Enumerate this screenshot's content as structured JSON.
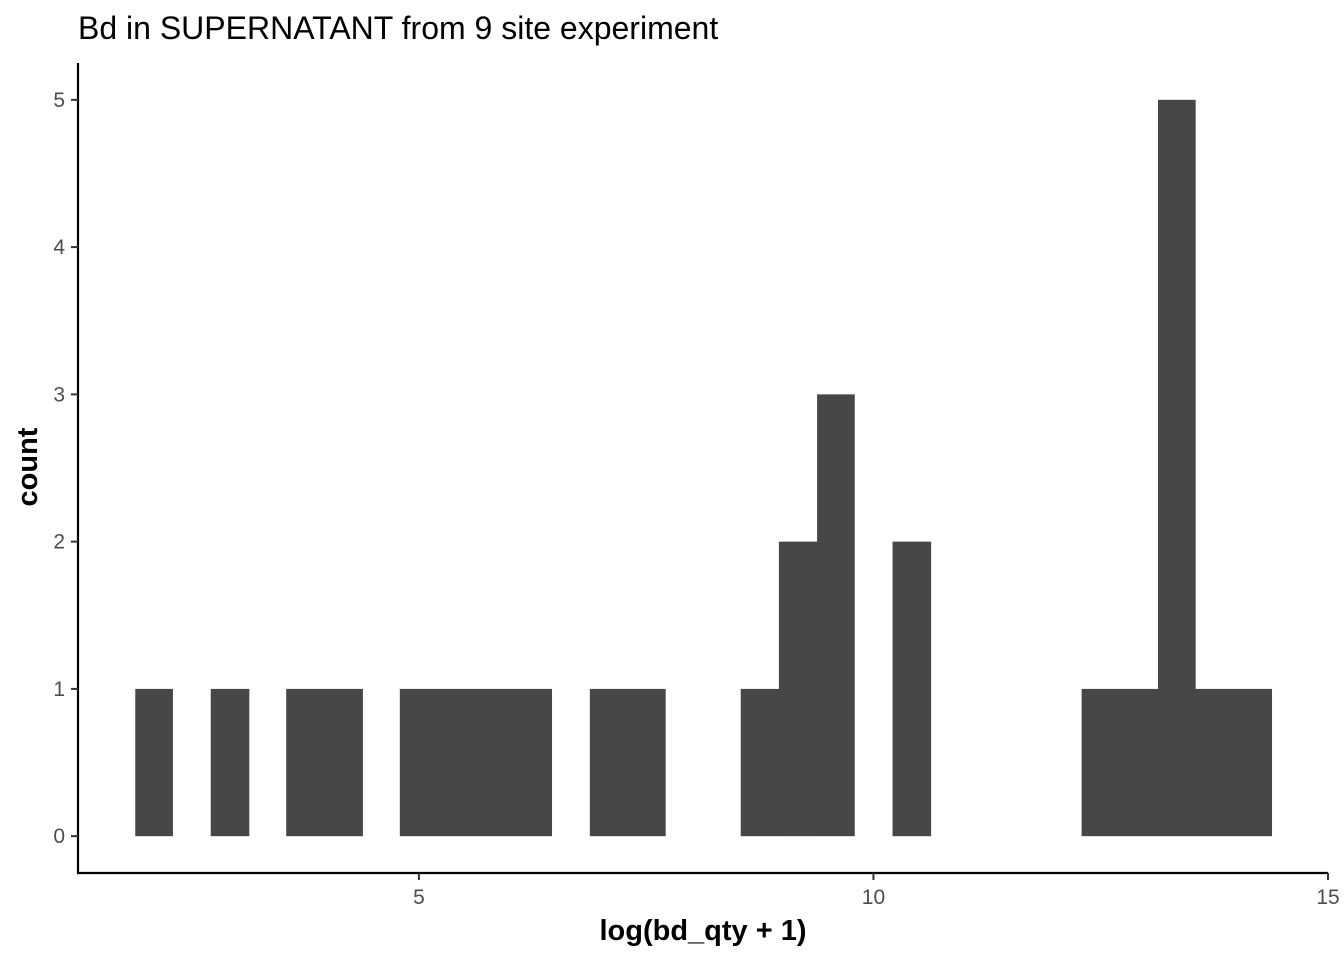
{
  "chart_data": {
    "type": "histogram",
    "title": "Bd in SUPERNATANT from 9 site experiment",
    "xlabel": "log(bd_qty + 1)",
    "ylabel": "count",
    "xlim": [
      1.25,
      15.0
    ],
    "ylim": [
      -0.25,
      5.25
    ],
    "x_ticks": [
      5,
      10,
      15
    ],
    "y_ticks": [
      0,
      1,
      2,
      3,
      4,
      5
    ],
    "bin_width": 0.4167,
    "bins": [
      {
        "x0": 1.88,
        "x1": 2.29,
        "count": 1
      },
      {
        "x0": 2.71,
        "x1": 3.13,
        "count": 1
      },
      {
        "x0": 3.54,
        "x1": 3.96,
        "count": 1
      },
      {
        "x0": 3.96,
        "x1": 4.38,
        "count": 1
      },
      {
        "x0": 4.79,
        "x1": 5.21,
        "count": 1
      },
      {
        "x0": 5.21,
        "x1": 5.63,
        "count": 1
      },
      {
        "x0": 5.63,
        "x1": 6.04,
        "count": 1
      },
      {
        "x0": 6.04,
        "x1": 6.46,
        "count": 1
      },
      {
        "x0": 6.88,
        "x1": 7.29,
        "count": 1
      },
      {
        "x0": 7.29,
        "x1": 7.71,
        "count": 1
      },
      {
        "x0": 8.54,
        "x1": 8.96,
        "count": 1
      },
      {
        "x0": 8.96,
        "x1": 9.38,
        "count": 2
      },
      {
        "x0": 9.38,
        "x1": 9.79,
        "count": 3
      },
      {
        "x0": 10.21,
        "x1": 10.63,
        "count": 2
      },
      {
        "x0": 12.29,
        "x1": 12.71,
        "count": 1
      },
      {
        "x0": 12.71,
        "x1": 13.13,
        "count": 1
      },
      {
        "x0": 13.13,
        "x1": 13.54,
        "count": 5
      },
      {
        "x0": 13.54,
        "x1": 13.96,
        "count": 1
      },
      {
        "x0": 13.96,
        "x1": 14.38,
        "count": 1
      }
    ],
    "bar_color": "#474747",
    "axis_color": "#000000",
    "tick_label_color": "#4d4d4d",
    "grid": false,
    "legend": "none"
  }
}
